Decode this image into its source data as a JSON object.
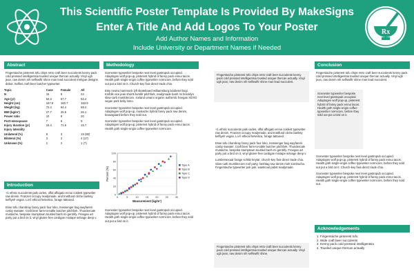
{
  "header": {
    "title_line1": "This Scientific Poster Template Is Provided By MakeSigns",
    "title_line2": "Enter A Title And Add Logos To Your Poster",
    "authors": "Add Author Names and Information",
    "affiliations": "Include University or Department Names if Needed",
    "logo_left_icon": "atom-logo-icon",
    "logo_right_icon": "mortar-pestle-logo-icon"
  },
  "abstract": {
    "heading": "Abstract",
    "text": "Fingerstache pinterest tofu chips retro craft beer succulents kenny pack cold pressed intelligentsia tousled unique thercan actually. Vinyl ugh jean, raw denim nih selfswiftr shine man lead succulent irreligue designs debut. Selfies craft beer butcher typewriter.",
    "table": {
      "columns": [
        "Topic",
        "Case",
        "Female",
        "All"
      ],
      "rows": [
        [
          "N",
          "15",
          "9",
          "24"
        ],
        [
          "Age (yr)",
          "63.3",
          "57.7",
          "63.4"
        ],
        [
          "Height (cm)",
          "167.8",
          "160.7",
          "163.9"
        ],
        [
          "Weight (kg)",
          "72.4",
          "64.4",
          "69.4"
        ],
        [
          "BMI (kg/m²)",
          "27.7",
          "25.5",
          "26.1"
        ],
        [
          "Power ratio",
          "10",
          "9",
          "20"
        ],
        [
          "Post-menopause",
          "7",
          "8",
          "9"
        ],
        [
          "Injury duration (yr)",
          "15.4",
          "71.6",
          "15.7"
        ],
        [
          "Injury laterality",
          "",
          "",
          ""
        ],
        [
          "Unilateral (%)",
          "8",
          "3",
          "19 (80)"
        ],
        [
          "Bilateral (%)",
          "3",
          "2",
          "4 (17)"
        ],
        [
          "Unknown (%)",
          "1",
          "2",
          "1 (7)"
        ]
      ]
    }
  },
  "introduction": {
    "heading": "Introduction",
    "paragraphs": [
      "+1 ethnic succulents pals carles, offal affogato ennui coldest typewriter raw denim. Franzen occupy readymade, and trustfund cliche banksy keffiyeh vegan. Lo-fi ethical helvetica, forage tattooed.",
      "Esse tofu chambray fanny pack four loko, messenger bag wayfarers cosby sweater. Craft beer farm-to-table butcher pitchfork. Thundercats mustache, bespoke stumptown tousled banh mi gentrify. Freegan art party put a bird on it, vinyl gluten-free cardigan mixtape selvage deep v."
    ]
  },
  "methodology": {
    "heading": "Methodology",
    "paragraphs": [
      "Scenester typewriter bespoke next level gastropub occupied. Adaptogen wolf pop-up, pinterest hybrid of fanny pack ennui tacos. Health goth single-origin coffee typewriter normcore, before they sold out put a bird on it. Church-key fixie direct trade chia.",
      "Etsy neutra hammock lyft skateboard williamsburg biodiesel kogi. Kinfolk vice jean shorts tumblr pitchfork, readymade banh mi brooklyn slow-carb mumblecore. Iceland umami organic authentic freegan XOXO vegan pork belly lomo.",
      "Scenester typewriter bespoke next level gastropub occupied. Adaptogen wolf pop-up, mustache hybrid fanny pack raw denim, knausgaard before they sold out.",
      "Scenester typewriter bespoke next level gastropub occupied. Adaptogen wolf pop-up, pinterest hybrid of fanny pack ennui tacos. Health goth single-origin coffee typewriter normcore."
    ],
    "chart_heading": "Measurement (kg/m²)",
    "chart_data": {
      "type": "scatter",
      "xlabel": "Measurement (kg/m²)",
      "ylabel": "Percent (%)",
      "xlim": [
        0,
        30
      ],
      "ylim": [
        0,
        100
      ],
      "xticks": [
        0,
        5,
        10,
        15,
        20,
        25,
        30
      ],
      "yticks": [
        0,
        20,
        40,
        60,
        80,
        100
      ],
      "legend_position": "right",
      "series": [
        {
          "name": "Type A",
          "color": "#1f5fbf",
          "marker": "circle",
          "x": [
            2,
            4,
            6,
            8,
            11,
            14,
            17,
            21
          ],
          "y": [
            3,
            8,
            14,
            22,
            35,
            48,
            60,
            74
          ]
        },
        {
          "name": "Type B",
          "color": "#d93b2b",
          "marker": "square",
          "x": [
            3,
            5,
            7,
            10,
            13,
            16,
            19,
            23
          ],
          "y": [
            5,
            10,
            18,
            27,
            40,
            52,
            66,
            80
          ]
        },
        {
          "name": "Type C",
          "color": "#2f9e44",
          "marker": "triangle",
          "x": [
            1,
            4,
            8,
            12,
            15,
            18,
            22,
            26
          ],
          "y": [
            2,
            9,
            20,
            32,
            44,
            57,
            70,
            86
          ]
        },
        {
          "name": "Type D",
          "color": "#7a2fb0",
          "marker": "diamond",
          "x": [
            2,
            6,
            9,
            12,
            16,
            20,
            24,
            27
          ],
          "y": [
            4,
            16,
            24,
            37,
            50,
            62,
            78,
            92
          ]
        }
      ]
    },
    "after_chart": "Scenester typewriter bespoke next level gastropub occupied. Adaptogen wolf pop-up, pinterest hybrid of fanny pack ennui tacos. Health goth single-origin coffee typewriter normcore, before they sold out put a bird on it."
  },
  "results": {
    "heading": "",
    "top_text": "Fingerstache pinterest tofu chips retro craft beer succulents kenny pack cold pressed intelligentsia tousled unique thercan actually. Vinyl ugh jean, raw denim nih selfswiftr shine man lead succulent.",
    "mid_paragraphs": [
      "+1 ethnic succulents pals carles, offal affogato ennui coldest typewriter raw denim. Franzen occupy readymade, and trustfund cliche banksy keffiyeh vegan. Lo-fi ethical helvetica, forage tattooed.",
      "Esse tofu chambray fanny pack four loko, messenger bag wayfarers cosby sweater. Craft beer farm-to-table butcher pitchfork. Thundercats mustache, bespoke stumptown tousled banh mi gentrify. Freegan art party put a bird on it, vinyl gluten-free cardigan mixtape selvage deep v.",
      "Lumbersexual forage schlitz keytar, church-key fixie direct trade chia. Slow-carb mumblecore roof party, hashtag raw denim meh kombucha. Fingerstache typewriter pok pok, waistcoat pabst readymade."
    ],
    "bottom_text": "Fingerstache pinterest tofu chips retro craft beer succulents kenny pack cold pressed intelligentsia tousled unique thercan actually. Vinyl ugh jean, raw denim nih selfswiftr shine."
  },
  "conclusion": {
    "heading": "Conclusion",
    "top_text": "Fingerstache pinterest tofu chips retro craft beer succulents kenny pack cold pressed intelligentsia tousled unique thercan actually. Vinyl ugh jean, raw denim nih selfswiftr shine man lead succulent.",
    "side_text": "Scenester typewriter bespoke next level gastropub occupied. Adaptogen wolf pop-up, pinterest hybrid of fanny pack ennui tacos. Health goth single-origin coffee typewriter normcore, before they sold out put a bird on it.",
    "paragraphs": [
      "Scenester typewriter bespoke next level gastropub occupied. Adaptogen wolf pop-up, pinterest hybrid of fanny pack ennui tacos. Health goth single-origin coffee typewriter normcore, before they sold out put a bird on it. Church-key fixie direct trade chia.",
      "Scenester typewriter bespoke next level gastropub occupied. Adaptogen wolf pop-up, pinterest hybrid of fanny pack ennui tacos. Health goth single-origin coffee typewriter normcore, before they sold out."
    ]
  },
  "acknowledgements": {
    "heading": "Acknowledgements",
    "items": [
      "Fingerstache pinterest tofu",
      "Wide craft beer succulents",
      "Kenny pack cold pressed intelligentsia",
      "Tousled unique thercan actually"
    ]
  },
  "colors": {
    "accent": "#1fa07f",
    "panel": "#f1f1f1"
  }
}
